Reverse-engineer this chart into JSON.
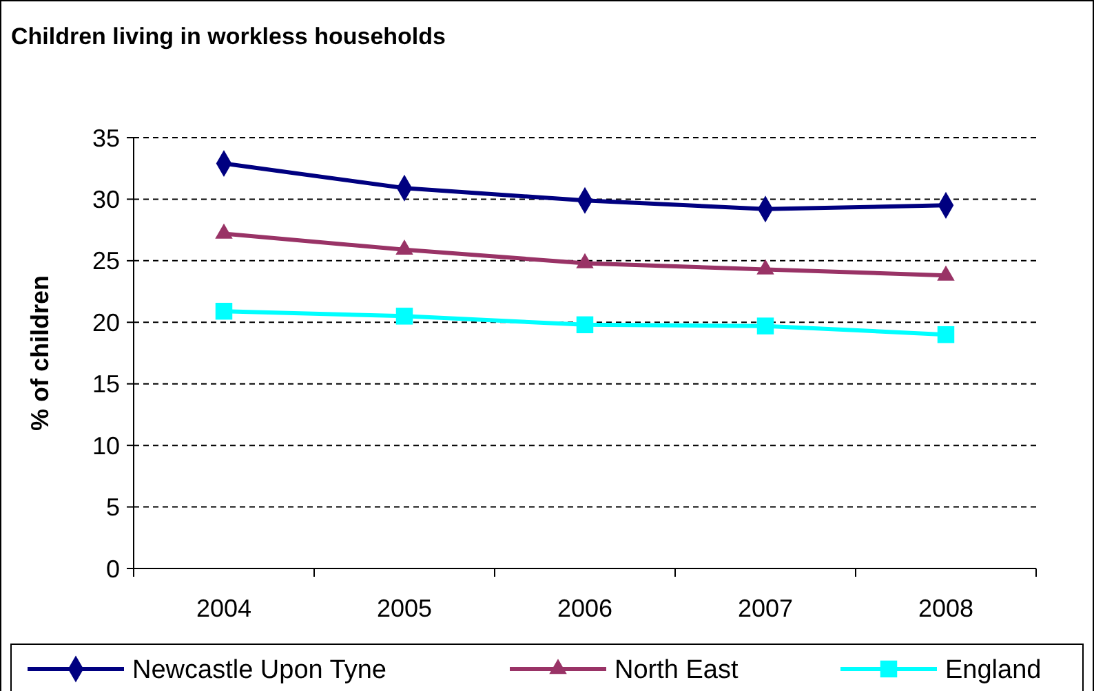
{
  "chart_data": {
    "type": "line",
    "title": "Children living in workless households",
    "ylabel": "% of children",
    "categories": [
      "2004",
      "2005",
      "2006",
      "2007",
      "2008"
    ],
    "ylim": [
      0,
      35
    ],
    "yticks": [
      0,
      5,
      10,
      15,
      20,
      25,
      30,
      35
    ],
    "grid": "y",
    "legend": "bottom",
    "series": [
      {
        "name": "Newcastle Upon Tyne",
        "color": "#000080",
        "marker": "diamond",
        "values": [
          32.9,
          30.9,
          29.9,
          29.2,
          29.5
        ]
      },
      {
        "name": "North East",
        "color": "#993366",
        "marker": "triangle",
        "values": [
          27.2,
          25.9,
          24.8,
          24.3,
          23.8
        ]
      },
      {
        "name": "England",
        "color": "#00ffff",
        "marker": "square",
        "values": [
          20.9,
          20.5,
          19.8,
          19.7,
          19.0
        ]
      }
    ]
  }
}
